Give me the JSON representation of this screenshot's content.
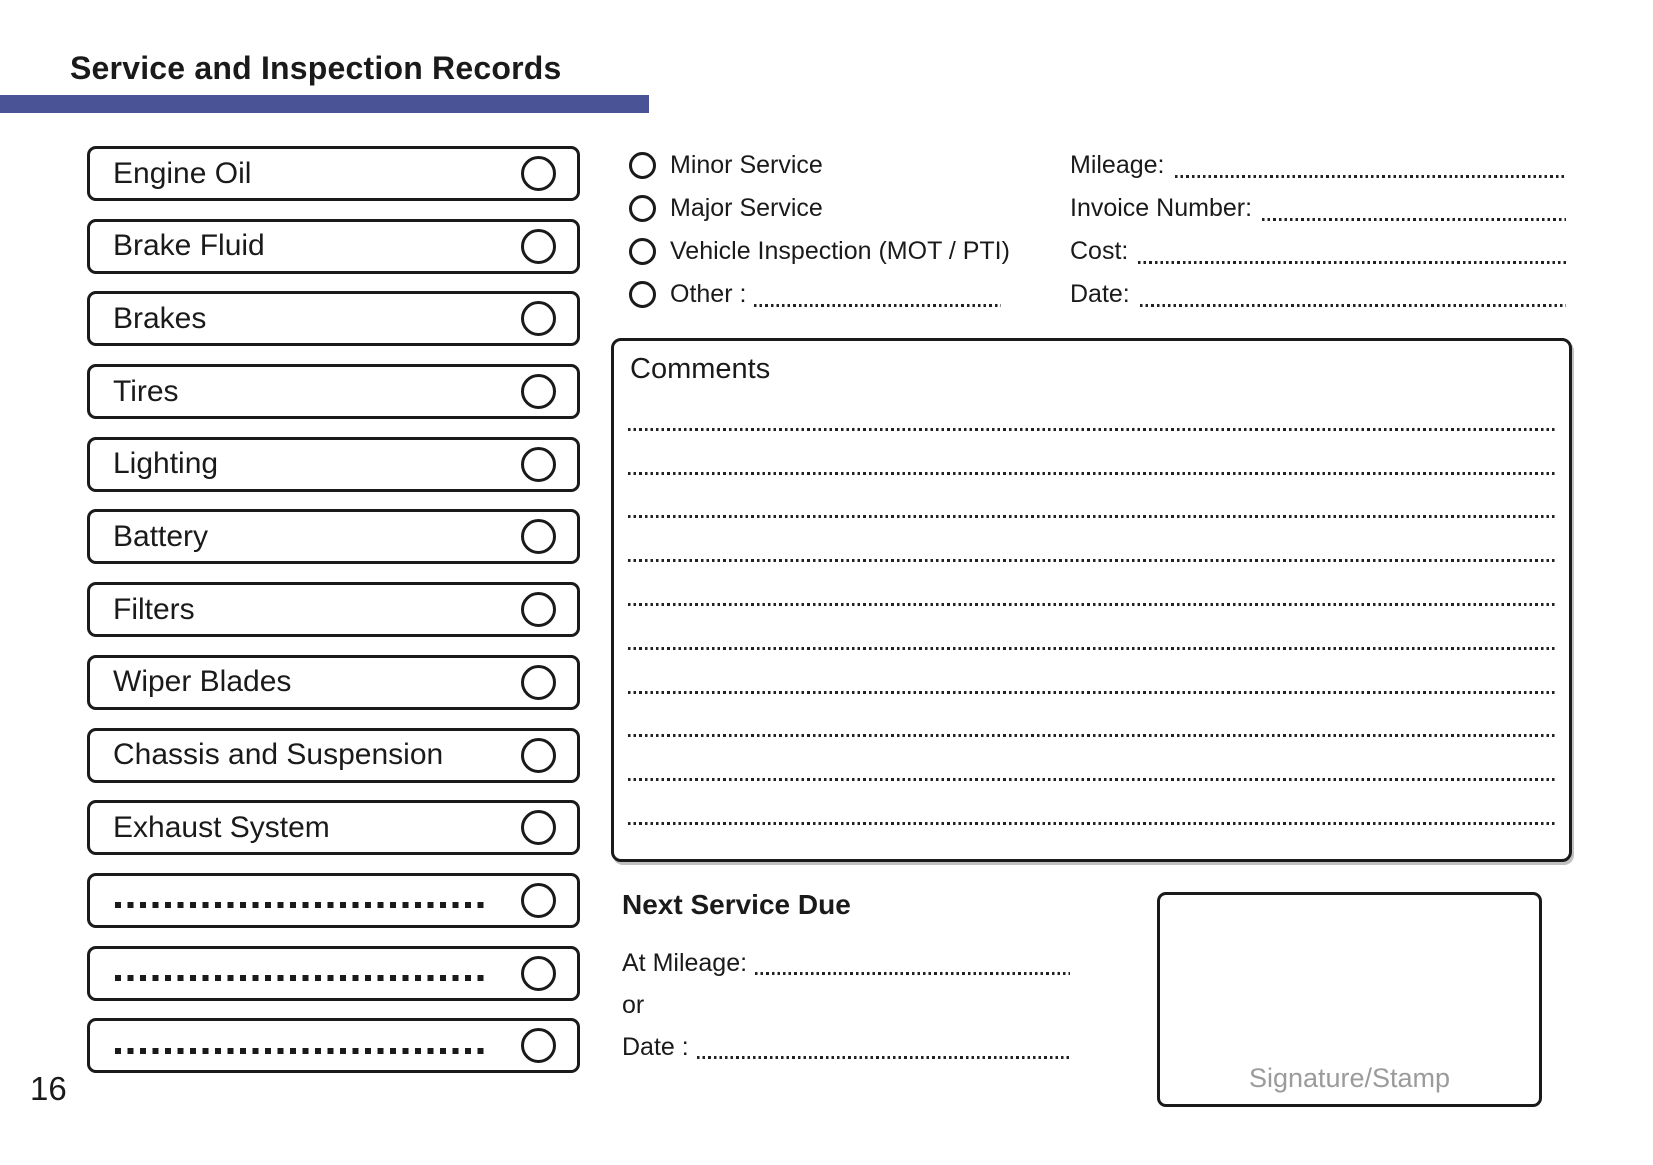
{
  "page": {
    "title": "Service and Inspection Records",
    "page_number": "16",
    "accent_color": "#4A5396"
  },
  "checklist": {
    "items": [
      {
        "label": "Engine Oil"
      },
      {
        "label": "Brake Fluid"
      },
      {
        "label": "Brakes"
      },
      {
        "label": "Tires"
      },
      {
        "label": "Lighting"
      },
      {
        "label": "Battery"
      },
      {
        "label": "Filters"
      },
      {
        "label": "Wiper Blades"
      },
      {
        "label": "Chassis and Suspension"
      },
      {
        "label": "Exhaust System"
      },
      {
        "label": "",
        "blank": true
      },
      {
        "label": "",
        "blank": true
      },
      {
        "label": "",
        "blank": true
      }
    ]
  },
  "service_type": {
    "options": [
      "Minor Service",
      "Major Service",
      "Vehicle Inspection (MOT / PTI)"
    ],
    "other_label": "Other :"
  },
  "record_fields": {
    "labels": [
      "Mileage:",
      "Invoice Number:",
      "Cost:",
      "Date:"
    ]
  },
  "comments": {
    "title": "Comments",
    "line_count": 10
  },
  "next_service": {
    "heading": "Next Service Due",
    "at_mileage_label": "At Mileage:",
    "or_label": "or",
    "date_label": "Date :"
  },
  "signature": {
    "label": "Signature/Stamp"
  }
}
